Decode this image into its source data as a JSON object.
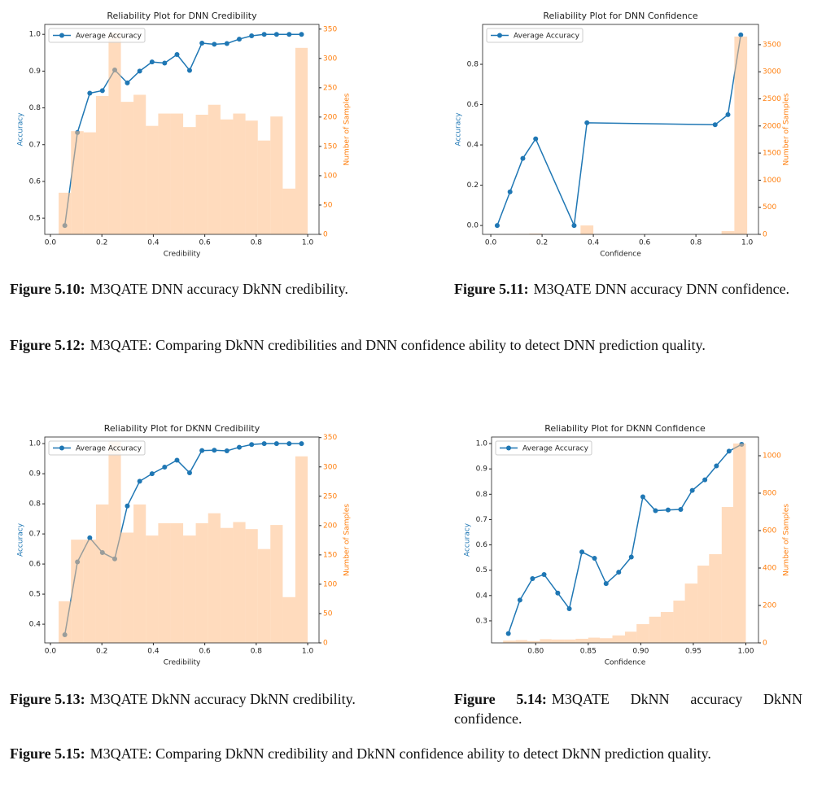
{
  "chart_data": [
    {
      "type": "reliability",
      "title": "Reliability Plot for DNN Credibility",
      "xlabel": "Credibility",
      "ylabel": "Accuracy",
      "y2label": "Number of Samples",
      "x": [
        0.056,
        0.105,
        0.153,
        0.202,
        0.25,
        0.299,
        0.347,
        0.395,
        0.444,
        0.492,
        0.541,
        0.589,
        0.637,
        0.686,
        0.734,
        0.782,
        0.831,
        0.879,
        0.928,
        0.976
      ],
      "series": [
        {
          "name": "Average Accuracy",
          "color": "#1f77b4",
          "values": [
            0.48,
            0.733,
            0.84,
            0.847,
            0.903,
            0.868,
            0.9,
            0.925,
            0.922,
            0.945,
            0.902,
            0.976,
            0.973,
            0.975,
            0.987,
            0.996,
            1.0,
            1.0,
            1.0,
            1.0
          ]
        }
      ],
      "histogram": {
        "axis": "y2",
        "color": "#ffbe86",
        "bins": [
          0.032,
          0.08,
          0.129,
          0.177,
          0.226,
          0.274,
          0.323,
          0.371,
          0.419,
          0.468,
          0.516,
          0.565,
          0.613,
          0.661,
          0.71,
          0.758,
          0.806,
          0.855,
          0.903,
          0.952,
          1.0
        ],
        "values": [
          71,
          176,
          174,
          236,
          344,
          226,
          238,
          185,
          206,
          206,
          183,
          204,
          221,
          196,
          206,
          194,
          160,
          201,
          78,
          318
        ]
      },
      "xlim": [
        -0.022,
        1.044
      ],
      "xticks": [
        {
          "value": 0,
          "label": "0.0"
        },
        0.2,
        0.4,
        0.6,
        0.8,
        {
          "value": 1,
          "label": "1.0"
        }
      ],
      "ylim": [
        0.456,
        1.027
      ],
      "yticks": [
        0.5,
        0.6,
        0.7,
        0.8,
        0.9,
        {
          "value": 1,
          "label": "1.0"
        }
      ],
      "y2lim": [
        0,
        358
      ],
      "y2ticks": [
        0,
        50,
        100,
        150,
        200,
        250,
        300,
        350
      ],
      "legend": "upper left"
    },
    {
      "type": "reliability",
      "title": "Reliability Plot for DNN Confidence",
      "xlabel": "Confidence",
      "ylabel": "Accuracy",
      "y2label": "Number of Samples",
      "x": [
        0.025,
        0.075,
        0.125,
        0.175,
        0.325,
        0.375,
        0.875,
        0.925,
        0.975
      ],
      "series": [
        {
          "name": "Average Accuracy",
          "color": "#1f77b4",
          "values": [
            0.0,
            0.167,
            0.333,
            0.43,
            0.0,
            0.51,
            0.5,
            0.55,
            0.946
          ]
        }
      ],
      "histogram": {
        "axis": "y2",
        "color": "#ffbe86",
        "bins": [
          0,
          0.05,
          0.1,
          0.15,
          0.2,
          0.25,
          0.3,
          0.35,
          0.4,
          0.45,
          0.5,
          0.55,
          0.6,
          0.65,
          0.7,
          0.75,
          0.8,
          0.85,
          0.9,
          0.95,
          1.0
        ],
        "values": [
          3,
          6,
          9,
          15,
          0,
          0,
          3,
          165,
          0,
          0,
          0,
          0,
          0,
          0,
          0,
          0,
          0,
          5,
          60,
          3650
        ]
      },
      "xlim": [
        -0.032,
        1.044
      ],
      "xticks": [
        {
          "value": 0,
          "label": "0.0"
        },
        0.2,
        0.4,
        0.6,
        0.8,
        {
          "value": 1,
          "label": "1.0"
        }
      ],
      "ylim": [
        -0.044,
        0.998
      ],
      "yticks": [
        {
          "value": 0,
          "label": "0.0"
        },
        0.2,
        0.4,
        0.6,
        0.8
      ],
      "y2lim": [
        0,
        3874
      ],
      "y2ticks": [
        0,
        500,
        1000,
        1500,
        2000,
        2500,
        3000,
        3500
      ],
      "legend": "upper left"
    },
    {
      "type": "reliability",
      "title": "Reliability Plot for DKNN Credibility",
      "xlabel": "Credibility",
      "ylabel": "Accuracy",
      "y2label": "Number of Samples",
      "x": [
        0.056,
        0.105,
        0.153,
        0.202,
        0.25,
        0.299,
        0.347,
        0.395,
        0.444,
        0.492,
        0.541,
        0.589,
        0.637,
        0.686,
        0.734,
        0.782,
        0.831,
        0.879,
        0.928,
        0.976
      ],
      "series": [
        {
          "name": "Average Accuracy",
          "color": "#1f77b4",
          "values": [
            0.365,
            0.607,
            0.687,
            0.638,
            0.617,
            0.793,
            0.875,
            0.9,
            0.922,
            0.945,
            0.903,
            0.977,
            0.978,
            0.976,
            0.988,
            0.997,
            1.0,
            1.0,
            1.0,
            1.0
          ]
        }
      ],
      "histogram": {
        "axis": "y2",
        "color": "#ffbe86",
        "bins": [
          0.032,
          0.08,
          0.129,
          0.177,
          0.226,
          0.274,
          0.323,
          0.371,
          0.419,
          0.468,
          0.516,
          0.565,
          0.613,
          0.661,
          0.71,
          0.758,
          0.806,
          0.855,
          0.903,
          0.952,
          1.0
        ],
        "values": [
          71,
          176,
          176,
          236,
          344,
          188,
          236,
          183,
          204,
          204,
          183,
          204,
          221,
          196,
          206,
          194,
          160,
          201,
          78,
          318
        ]
      },
      "xlim": [
        -0.022,
        1.044
      ],
      "xticks": [
        {
          "value": 0,
          "label": "0.0"
        },
        0.2,
        0.4,
        0.6,
        0.8,
        {
          "value": 1,
          "label": "1.0"
        }
      ],
      "ylim": [
        0.338,
        1.022
      ],
      "yticks": [
        0.4,
        0.5,
        0.6,
        0.7,
        0.8,
        0.9,
        {
          "value": 1,
          "label": "1.0"
        }
      ],
      "y2lim": [
        0,
        351
      ],
      "y2ticks": [
        0,
        50,
        100,
        150,
        200,
        250,
        300,
        350
      ],
      "legend": "upper left"
    },
    {
      "type": "reliability",
      "title": "Reliability Plot for DKNN Confidence",
      "xlabel": "Confidence",
      "ylabel": "Accuracy",
      "y2label": "Number of Samples",
      "x": [
        0.774,
        0.785,
        0.797,
        0.808,
        0.821,
        0.832,
        0.844,
        0.856,
        0.867,
        0.879,
        0.891,
        0.902,
        0.914,
        0.926,
        0.938,
        0.949,
        0.961,
        0.972,
        0.984,
        0.996
      ],
      "series": [
        {
          "name": "Average Accuracy",
          "color": "#1f77b4",
          "values": [
            0.25,
            0.382,
            0.467,
            0.483,
            0.41,
            0.348,
            0.572,
            0.547,
            0.447,
            0.492,
            0.552,
            0.79,
            0.735,
            0.738,
            0.74,
            0.815,
            0.857,
            0.912,
            0.97,
            0.997
          ]
        }
      ],
      "histogram": {
        "axis": "y2",
        "color": "#ffbe86",
        "bins": [
          0.769,
          0.781,
          0.792,
          0.804,
          0.815,
          0.827,
          0.838,
          0.85,
          0.861,
          0.873,
          0.885,
          0.896,
          0.908,
          0.919,
          0.931,
          0.942,
          0.954,
          0.965,
          0.977,
          0.988,
          1.0
        ],
        "values": [
          12,
          15,
          10,
          20,
          18,
          18,
          22,
          28,
          25,
          40,
          60,
          100,
          140,
          165,
          226,
          317,
          413,
          474,
          726,
          1065
        ]
      },
      "xlim": [
        0.758,
        1.012
      ],
      "xticks": [
        {
          "value": 0.8,
          "label": "0.80"
        },
        0.85,
        {
          "value": 0.9,
          "label": "0.90"
        },
        0.95,
        {
          "value": 1,
          "label": "1.00"
        }
      ],
      "ylim": [
        0.213,
        1.026
      ],
      "yticks": [
        0.3,
        0.4,
        0.5,
        0.6,
        0.7,
        0.8,
        0.9,
        {
          "value": 1,
          "label": "1.0"
        }
      ],
      "y2lim": [
        0,
        1100
      ],
      "y2ticks": [
        0,
        200,
        400,
        600,
        800,
        1000
      ],
      "legend": "upper left"
    }
  ],
  "captions": [
    {
      "label": "Figure 5.10:",
      "text": "M3QATE DNN accuracy DkNN credibility."
    },
    {
      "label": "Figure 5.11:",
      "text": "M3QATE DNN accuracy DNN confidence."
    },
    {
      "label": "Figure 5.12:",
      "text": "M3QATE: Comparing DkNN credibilities and DNN confidence ability to detect DNN prediction quality."
    },
    {
      "label": "Figure 5.13:",
      "text": "M3QATE DkNN accuracy DkNN credibility."
    },
    {
      "label": "Figure 5.14:",
      "text": "M3QATE DkNN accuracy DkNN confidence."
    },
    {
      "label": "Figure 5.15:",
      "text": "M3QATE: Comparing DkNN credibility and DkNN confidence ability to detect DkNN prediction quality."
    }
  ]
}
